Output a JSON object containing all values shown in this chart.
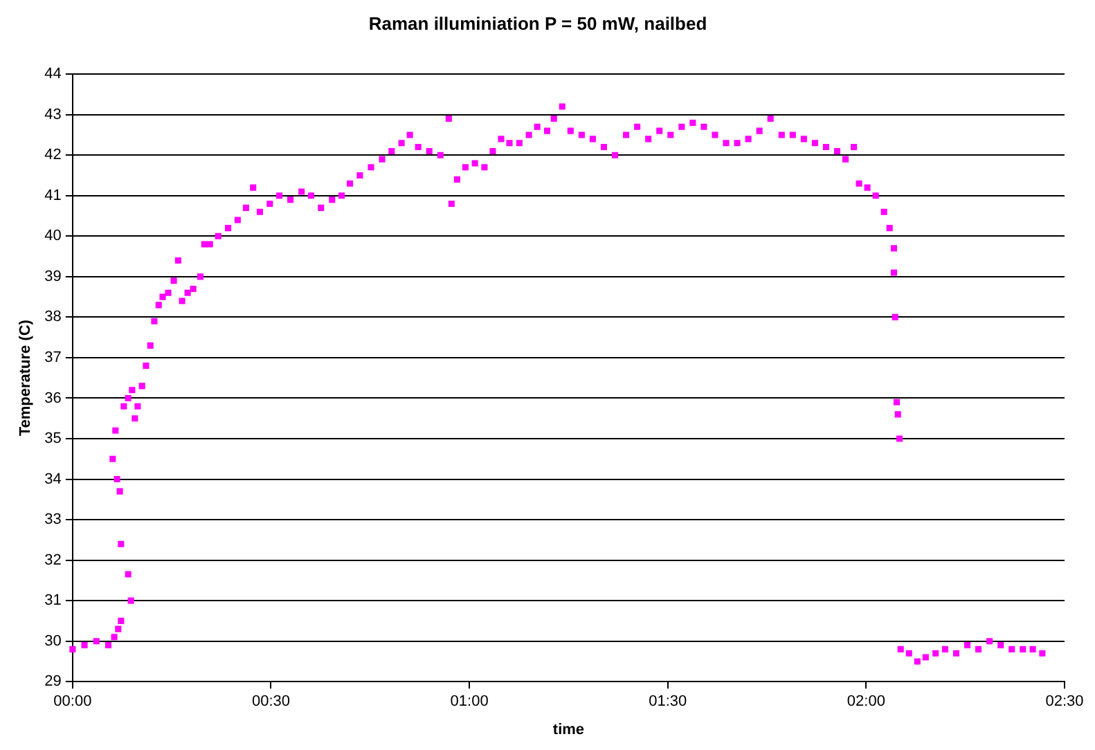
{
  "chart_data": {
    "type": "scatter",
    "title": "Raman illuminiation P = 50 mW, nailbed",
    "xlabel": "time",
    "ylabel": "Temperature (C)",
    "xlim": [
      0,
      2.5
    ],
    "xticks": [
      {
        "value": 0,
        "label": "00:00"
      },
      {
        "value": 0.5,
        "label": "00:30"
      },
      {
        "value": 1,
        "label": "01:00"
      },
      {
        "value": 1.5,
        "label": "01:30"
      },
      {
        "value": 2,
        "label": "02:00"
      },
      {
        "value": 2.5,
        "label": "02:30"
      }
    ],
    "ylim": [
      29,
      44
    ],
    "yticks": [
      29,
      30,
      31,
      32,
      33,
      34,
      35,
      36,
      37,
      38,
      39,
      40,
      41,
      42,
      43,
      44
    ],
    "grid": "y",
    "legend": false,
    "marker": "square",
    "series": [
      {
        "color": "#ff00ff",
        "x": [
          0,
          0.03,
          0.06,
          0.09,
          0.105,
          0.115,
          0.122,
          0.101,
          0.108,
          0.112,
          0.119,
          0.122,
          0.14,
          0.147,
          0.129,
          0.14,
          0.15,
          0.157,
          0.164,
          0.175,
          0.185,
          0.196,
          0.206,
          0.217,
          0.227,
          0.241,
          0.255,
          0.266,
          0.276,
          0.29,
          0.304,
          0.322,
          0.332,
          0.346,
          0.367,
          0.392,
          0.416,
          0.437,
          0.455,
          0.472,
          0.497,
          0.521,
          0.549,
          0.577,
          0.601,
          0.626,
          0.654,
          0.678,
          0.699,
          0.724,
          0.752,
          0.78,
          0.804,
          0.829,
          0.85,
          0.871,
          0.899,
          0.927,
          0.948,
          0.955,
          0.969,
          0.99,
          1.014,
          1.038,
          1.059,
          1.08,
          1.101,
          1.126,
          1.15,
          1.171,
          1.196,
          1.213,
          1.234,
          1.255,
          1.283,
          1.311,
          1.339,
          1.367,
          1.395,
          1.423,
          1.451,
          1.479,
          1.507,
          1.535,
          1.563,
          1.591,
          1.619,
          1.647,
          1.675,
          1.703,
          1.731,
          1.759,
          1.787,
          1.815,
          1.843,
          1.871,
          1.899,
          1.927,
          1.948,
          1.969,
          1.982,
          2.003,
          2.024,
          2.045,
          2.059,
          2.07,
          2.07,
          2.073,
          2.077,
          2.08,
          2.084,
          2.087,
          2.108,
          2.129,
          2.15,
          2.175,
          2.199,
          2.227,
          2.255,
          2.283,
          2.311,
          2.339,
          2.367,
          2.395,
          2.42,
          2.444
        ],
        "values": [
          29.8,
          29.9,
          30,
          29.9,
          30.1,
          30.3,
          30.5,
          34.5,
          35.2,
          34,
          33.7,
          32.4,
          31.65,
          31,
          35.8,
          36,
          36.2,
          35.5,
          35.8,
          36.3,
          36.8,
          37.3,
          37.9,
          38.3,
          38.5,
          38.6,
          38.9,
          39.4,
          38.4,
          38.6,
          38.7,
          39,
          39.8,
          39.8,
          40,
          40.2,
          40.4,
          40.7,
          41.2,
          40.6,
          40.8,
          41,
          40.9,
          41.1,
          41,
          40.7,
          40.9,
          41,
          41.3,
          41.5,
          41.7,
          41.9,
          42.1,
          42.3,
          42.5,
          42.2,
          42.1,
          42,
          42.9,
          40.8,
          41.4,
          41.7,
          41.8,
          41.7,
          42.1,
          42.4,
          42.3,
          42.3,
          42.5,
          42.7,
          42.6,
          42.9,
          43.2,
          42.6,
          42.5,
          42.4,
          42.2,
          42,
          42.5,
          42.7,
          42.4,
          42.6,
          42.5,
          42.7,
          42.8,
          42.7,
          42.5,
          42.3,
          42.3,
          42.4,
          42.6,
          42.9,
          42.5,
          42.5,
          42.4,
          42.3,
          42.2,
          42.1,
          41.9,
          42.2,
          41.3,
          41.2,
          41,
          40.6,
          40.2,
          39.7,
          39.1,
          38,
          35.9,
          35.6,
          35,
          29.8,
          29.7,
          29.5,
          29.6,
          29.7,
          29.8,
          29.7,
          29.9,
          29.8,
          30,
          29.9,
          29.8,
          29.8,
          29.8,
          29.7
        ]
      }
    ]
  }
}
